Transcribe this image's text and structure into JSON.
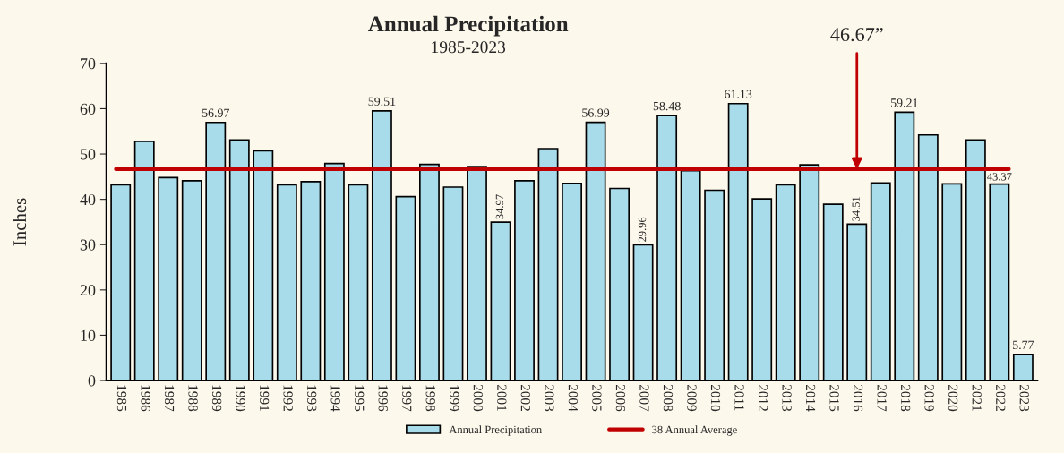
{
  "chart_data": {
    "type": "bar",
    "title": "Annual Precipitation",
    "subtitle": "1985-2023",
    "ylabel": "Inches",
    "categories": [
      "1985",
      "1986",
      "1987",
      "1988",
      "1989",
      "1990",
      "1991",
      "1992",
      "1993",
      "1994",
      "1995",
      "1996",
      "1997",
      "1998",
      "1999",
      "2000",
      "2001",
      "2002",
      "2003",
      "2004",
      "2005",
      "2006",
      "2007",
      "2008",
      "2009",
      "2010",
      "2011",
      "2012",
      "2013",
      "2014",
      "2015",
      "2016",
      "2017",
      "2018",
      "2019",
      "2020",
      "2021",
      "2022",
      "2023"
    ],
    "series": [
      {
        "name": "Annual Precipitation",
        "color": "#a8dcea",
        "values": [
          43.2,
          52.8,
          44.8,
          44.1,
          56.97,
          53.1,
          50.7,
          43.2,
          43.9,
          47.9,
          43.2,
          59.51,
          40.6,
          47.7,
          42.7,
          47.2,
          34.97,
          44.1,
          51.2,
          43.5,
          56.99,
          42.4,
          29.96,
          58.48,
          46.3,
          42.0,
          61.13,
          40.1,
          43.2,
          47.6,
          38.9,
          34.51,
          43.6,
          59.21,
          54.2,
          43.4,
          53.1,
          43.37,
          5.77
        ],
        "value_labels": [
          null,
          null,
          null,
          null,
          "56.97",
          null,
          null,
          null,
          null,
          null,
          null,
          "59.51",
          null,
          null,
          null,
          null,
          "34.97",
          null,
          null,
          null,
          "56.99",
          null,
          "29.96",
          "58.48",
          null,
          null,
          "61.13",
          null,
          null,
          null,
          null,
          "34.51",
          null,
          "59.21",
          null,
          null,
          null,
          "43.37",
          "5.77"
        ]
      }
    ],
    "ylim": [
      0,
      70
    ],
    "yticks": [
      0,
      10,
      20,
      30,
      40,
      50,
      60,
      70
    ],
    "grid": false,
    "legend": "bottom",
    "ref_lines": [
      {
        "axis": "y",
        "value": 46.67,
        "label": "38 Annual Average",
        "color": "#c00000",
        "line_style": "solid"
      }
    ],
    "annotations": [
      {
        "text": "46.67”",
        "x": "2016",
        "y": 46.67
      }
    ]
  }
}
